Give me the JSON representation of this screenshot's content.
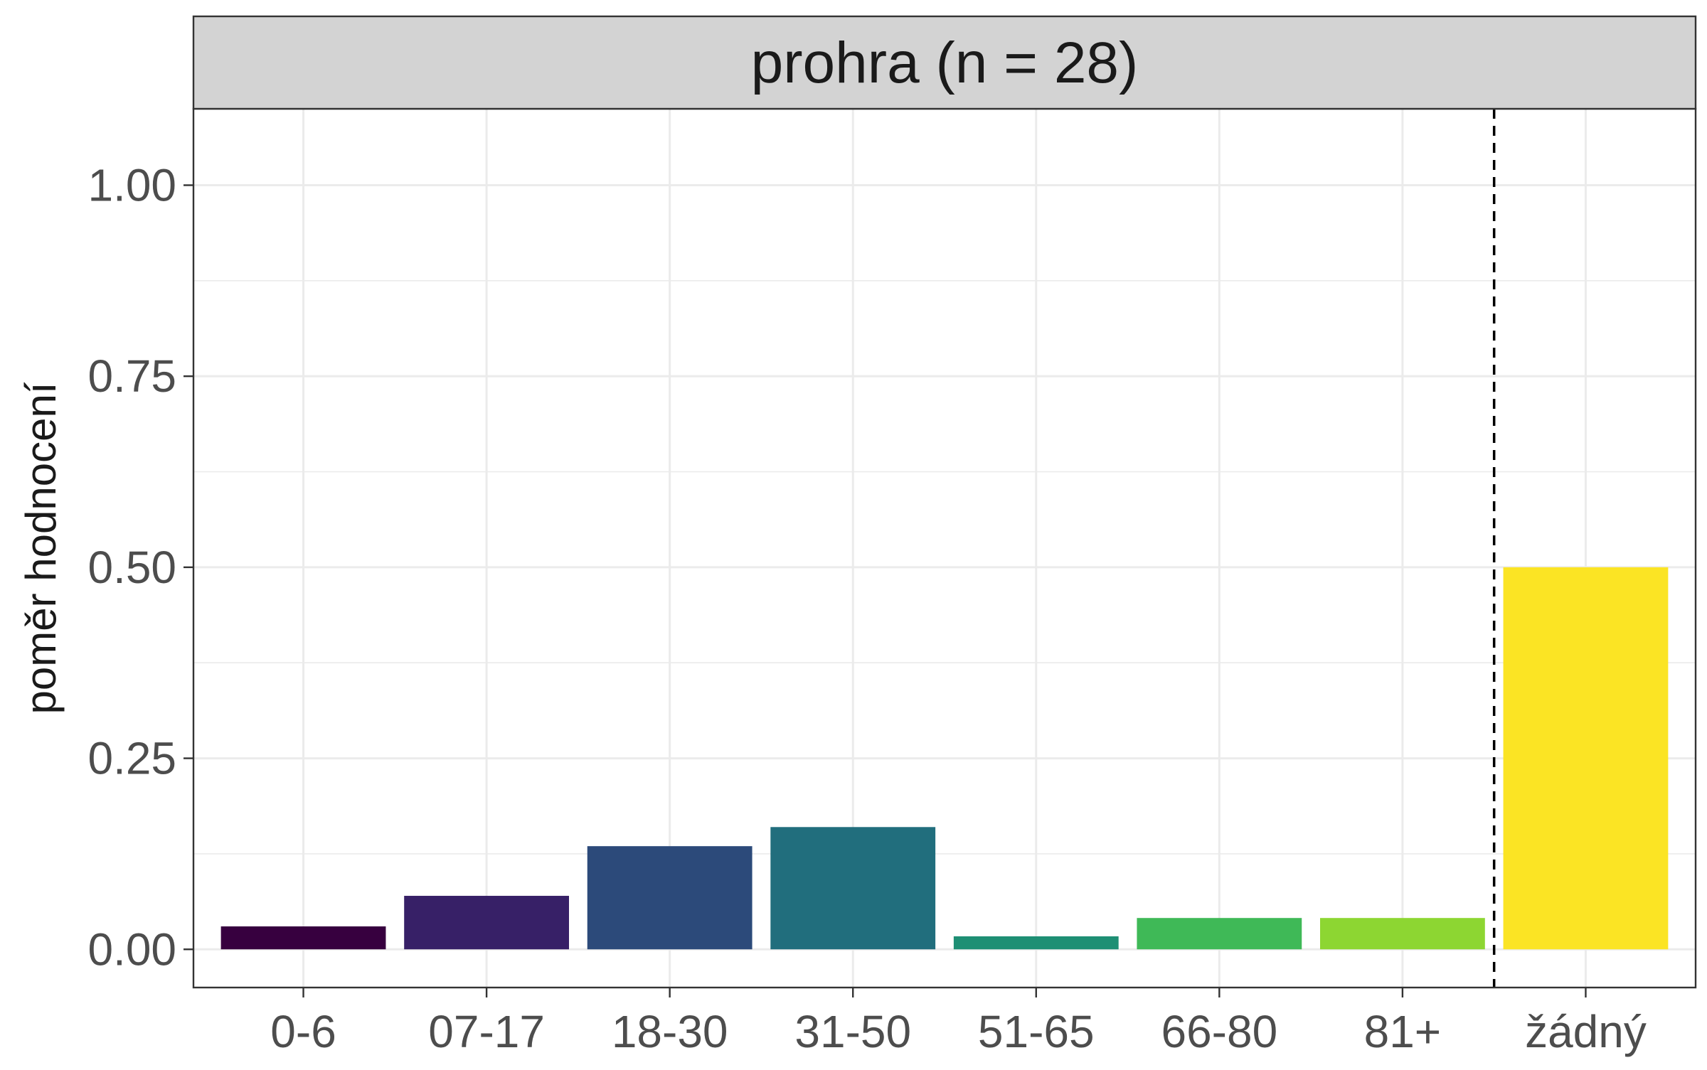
{
  "chart_data": {
    "type": "bar",
    "facet_title": "prohra (n = 28)",
    "categories": [
      "0-6",
      "07-17",
      "18-30",
      "31-50",
      "51-65",
      "66-80",
      "81+",
      "žádný"
    ],
    "values": [
      0.03,
      0.07,
      0.135,
      0.16,
      0.017,
      0.041,
      0.041,
      0.5
    ],
    "bar_colors": [
      "#37003F",
      "#372067",
      "#2C4A7A",
      "#216E7D",
      "#1E8F74",
      "#3FB957",
      "#8DD632",
      "#FBE424"
    ],
    "ylabel": "poměr hodnocení",
    "xlabel": "",
    "ylim": [
      -0.05,
      1.1
    ],
    "y_ticks": [
      0.0,
      0.25,
      0.5,
      0.75,
      1.0
    ],
    "y_tick_labels": [
      "0.00",
      "0.25",
      "0.50",
      "0.75",
      "1.00"
    ],
    "reference_line": {
      "style": "dashed",
      "between": [
        "81+",
        "žádný"
      ]
    },
    "grid": true,
    "legend": "none",
    "theme": {
      "strip_fill": "#D3D3D3",
      "grid_color": "#EBEBEB",
      "border_color": "#333333",
      "axis_text_color": "#4D4D4D",
      "title_color": "#1A1A1A"
    }
  }
}
